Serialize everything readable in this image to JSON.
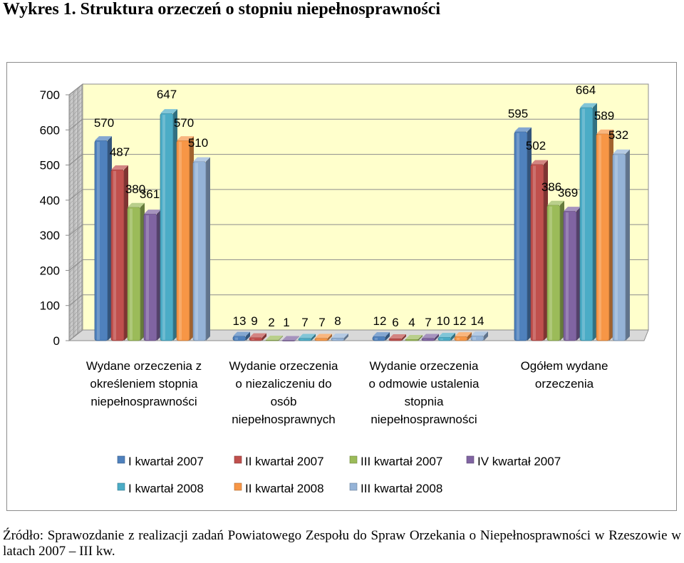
{
  "title": "Wykres 1. Struktura orzeczeń o stopniu niepełnosprawności",
  "source": "Źródło: Sprawozdanie z realizacji zadań Powiatowego Zespołu do Spraw Orzekania o Niepełnosprawności w Rzeszowie w latach 2007 – III kw.",
  "colors": {
    "plot_background": "#ffffcc",
    "side_wall": "#c0c0c0",
    "grid": "#8c8c8c"
  },
  "chart_data": {
    "type": "bar",
    "ylim": [
      0,
      700
    ],
    "yticks": [
      0,
      100,
      200,
      300,
      400,
      500,
      600,
      700
    ],
    "grid": true,
    "legend_position": "bottom",
    "categories": [
      [
        "Wydane orzeczenia z",
        "określeniem stopnia",
        "niepełnosprawności"
      ],
      [
        "Wydanie orzeczenia",
        "o niezaliczeniu do",
        "osób",
        "niepełnosprawnych"
      ],
      [
        "Wydanie orzeczenia",
        "o odmowie ustalenia",
        "stopnia",
        "niepełnosprawności"
      ],
      [
        "Ogółem wydane",
        "orzeczenia"
      ]
    ],
    "series": [
      {
        "name": "I kwartał 2007",
        "color": "#4f81bd",
        "values": [
          570,
          13,
          12,
          595
        ]
      },
      {
        "name": "II kwartał 2007",
        "color": "#c0504d",
        "values": [
          487,
          9,
          6,
          502
        ]
      },
      {
        "name": "III kwartał 2007",
        "color": "#9bbb59",
        "values": [
          380,
          2,
          4,
          386
        ]
      },
      {
        "name": "IV kwartał 2007",
        "color": "#8064a2",
        "values": [
          361,
          1,
          7,
          369
        ]
      },
      {
        "name": "I kwartał 2008",
        "color": "#4bacc6",
        "values": [
          647,
          7,
          10,
          664
        ]
      },
      {
        "name": "II kwartał 2008",
        "color": "#f79646",
        "values": [
          570,
          7,
          12,
          589
        ]
      },
      {
        "name": "III kwartał 2008",
        "color": "#95b3d7",
        "values": [
          510,
          8,
          14,
          532
        ]
      }
    ]
  }
}
